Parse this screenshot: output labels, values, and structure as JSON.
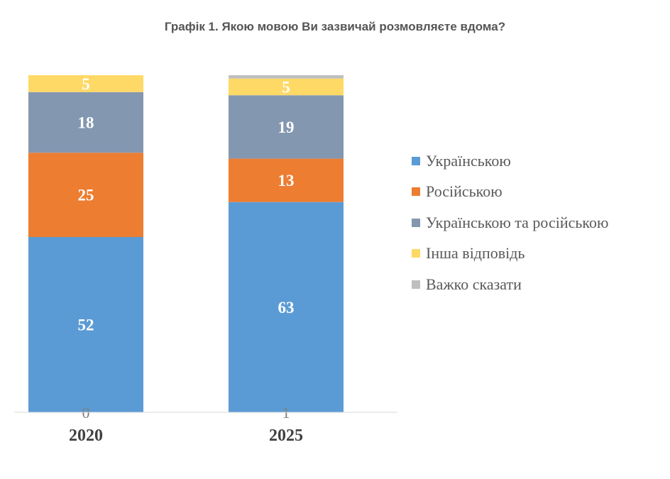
{
  "chart_data": {
    "type": "bar",
    "stacked": true,
    "title": "Графік 1. Якою мовою Ви зазвичай розмовляєте вдома?",
    "categories": [
      "2020",
      "2025"
    ],
    "series": [
      {
        "name": "Українською",
        "values": [
          52,
          63
        ],
        "color": "#5B9BD5"
      },
      {
        "name": "Російською",
        "values": [
          25,
          13
        ],
        "color": "#ED7D31"
      },
      {
        "name": "Українською та російською",
        "values": [
          18,
          19
        ],
        "color": "#8497B0"
      },
      {
        "name": "Інша відповідь",
        "values": [
          5,
          5
        ],
        "color": "#FFD966"
      },
      {
        "name": "Важко сказати",
        "values": [
          0,
          1
        ],
        "color": "#BFBFBF"
      }
    ],
    "legend_position": "right",
    "grid": false
  }
}
